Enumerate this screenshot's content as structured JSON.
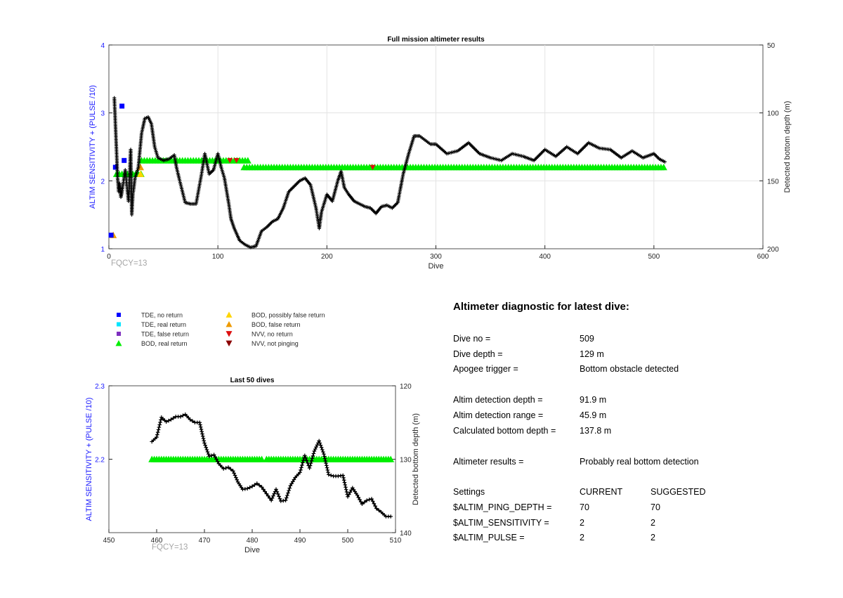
{
  "main_chart": {
    "title": "Full mission altimeter results",
    "xlabel": "Dive",
    "ylabel_left": "ALTIM SENSITIVITY + (PULSE /10)",
    "ylabel_right": "Detected bottom depth (m)",
    "annotation": "FQCY=13",
    "xticks": [
      "0",
      "100",
      "200",
      "300",
      "400",
      "500",
      "600"
    ],
    "yticks_left": [
      "1",
      "2",
      "3",
      "4"
    ],
    "yticks_right": [
      "50",
      "100",
      "150",
      "200"
    ]
  },
  "inset_chart": {
    "title": "Last 50 dives",
    "xlabel": "Dive",
    "ylabel_left": "ALTIM SENSITIVITY + (PULSE /10)",
    "ylabel_right": "Detected bottom depth (m)",
    "annotation": "FQCY=13",
    "xticks": [
      "450",
      "460",
      "470",
      "480",
      "490",
      "500",
      "510"
    ],
    "yticks_left": [
      "2.2",
      "2.3"
    ],
    "yticks_right": [
      "120",
      "130",
      "140"
    ]
  },
  "legend": {
    "items": [
      {
        "label": "TDE, no return",
        "color": "#0000ff",
        "shape": "square"
      },
      {
        "label": "TDE, real return",
        "color": "#00e5ff",
        "shape": "square"
      },
      {
        "label": "TDE, false return",
        "color": "#7e2fbf",
        "shape": "square"
      },
      {
        "label": "BOD, real return",
        "color": "#00ee00",
        "shape": "triangle-up"
      },
      {
        "label": "BOD, possibly false return",
        "color": "#ffd500",
        "shape": "triangle-up"
      },
      {
        "label": "BOD, false return",
        "color": "#ee9a00",
        "shape": "triangle-up"
      },
      {
        "label": "NVV, no return",
        "color": "#dd1010",
        "shape": "triangle-down"
      },
      {
        "label": "NVV, not pinging",
        "color": "#8b0000",
        "shape": "triangle-down"
      }
    ]
  },
  "diagnostic": {
    "title": "Altimeter diagnostic for latest dive:",
    "rows": [
      {
        "label": "Dive no =",
        "value": "509"
      },
      {
        "label": "Dive depth =",
        "value": "129 m"
      },
      {
        "label": "Apogee trigger =",
        "value": "Bottom obstacle detected"
      },
      {
        "label": "Altim detection depth =",
        "value": "91.9 m"
      },
      {
        "label": "Altim detection range =",
        "value": "45.9 m"
      },
      {
        "label": "Calculated bottom depth =",
        "value": "137.8 m"
      },
      {
        "label": "Altimeter results =",
        "value": "Probably real bottom detection"
      }
    ],
    "settings_header": {
      "name": "Settings",
      "current": "CURRENT",
      "suggested": "SUGGESTED"
    },
    "settings": [
      {
        "name": "$ALTIM_PING_DEPTH =",
        "current": "70",
        "suggested": "70"
      },
      {
        "name": "$ALTIM_SENSITIVITY =",
        "current": "2",
        "suggested": "2"
      },
      {
        "name": "$ALTIM_PULSE =",
        "current": "2",
        "suggested": "2"
      }
    ]
  },
  "chart_data": [
    {
      "type": "scatter",
      "title": "Full mission altimeter results",
      "xlabel": "Dive",
      "ylabel": "ALTIM SENSITIVITY + (PULSE /10)",
      "y2label": "Detected bottom depth (m)",
      "xlim": [
        0,
        600
      ],
      "ylim": [
        1,
        4
      ],
      "y2lim": [
        200,
        50
      ],
      "y2_reversed": true,
      "grid": true,
      "series": [
        {
          "name": "BOD, real return",
          "marker": "triangle-up",
          "color": "#00ee00",
          "segments": [
            {
              "x0": 7,
              "x1": 30,
              "y": 2.1
            },
            {
              "x0": 30,
              "x1": 128,
              "y": 2.3
            },
            {
              "x0": 124,
              "x1": 510,
              "y": 2.2
            }
          ]
        },
        {
          "name": "BOD, possibly false return",
          "marker": "triangle-up",
          "color": "#ffd500",
          "points": [
            [
              29,
              2.1
            ]
          ]
        },
        {
          "name": "BOD, false return",
          "marker": "triangle-up",
          "color": "#ee9a00",
          "points": [
            [
              4,
              1.2
            ],
            [
              29,
              2.2
            ]
          ]
        },
        {
          "name": "TDE, no return",
          "marker": "square",
          "color": "#0000ff",
          "points": [
            [
              2,
              1.2
            ],
            [
              6,
              2.2
            ],
            [
              12,
              3.1
            ],
            [
              14,
              2.3
            ]
          ]
        },
        {
          "name": "NVV, no return",
          "marker": "triangle-down",
          "color": "#dd1010",
          "points": [
            [
              111,
              2.3
            ],
            [
              117,
              2.3
            ],
            [
              242,
              2.2
            ]
          ]
        },
        {
          "name": "Detected bottom depth",
          "type": "line",
          "axis": "y2",
          "color": "#000000",
          "x": [
            5,
            8,
            9,
            10,
            11,
            12,
            15,
            18,
            20,
            21,
            22,
            24,
            27,
            30,
            33,
            36,
            39,
            42,
            45,
            50,
            55,
            60,
            62,
            65,
            70,
            75,
            80,
            85,
            88,
            92,
            96,
            100,
            103,
            106,
            110,
            112,
            115,
            120,
            125,
            130,
            135,
            140,
            145,
            150,
            155,
            160,
            165,
            170,
            175,
            180,
            185,
            190,
            193,
            195,
            200,
            205,
            210,
            213,
            216,
            220,
            225,
            230,
            235,
            240,
            245,
            250,
            255,
            260,
            265,
            270,
            275,
            280,
            285,
            290,
            295,
            300,
            310,
            320,
            330,
            340,
            350,
            360,
            370,
            380,
            390,
            400,
            410,
            420,
            430,
            440,
            450,
            460,
            470,
            480,
            490,
            500,
            505,
            510
          ],
          "y": [
            89,
            148,
            158,
            152,
            162,
            158,
            142,
            165,
            127,
            175,
            160,
            148,
            140,
            115,
            104,
            103,
            108,
            125,
            133,
            135,
            134,
            131,
            140,
            150,
            166,
            167,
            167,
            145,
            130,
            145,
            142,
            130,
            140,
            148,
            167,
            178,
            185,
            194,
            197,
            199,
            198,
            187,
            184,
            180,
            178,
            170,
            158,
            154,
            150,
            148,
            153,
            170,
            185,
            173,
            160,
            165,
            150,
            143,
            155,
            160,
            165,
            167,
            169,
            170,
            174,
            169,
            168,
            170,
            166,
            145,
            130,
            117,
            117,
            120,
            123,
            123,
            130,
            128,
            122,
            130,
            133,
            135,
            130,
            132,
            135,
            127,
            132,
            125,
            130,
            122,
            126,
            127,
            133,
            128,
            133,
            130,
            134,
            136
          ]
        }
      ]
    },
    {
      "type": "scatter",
      "title": "Last 50 dives",
      "xlabel": "Dive",
      "ylabel": "ALTIM SENSITIVITY + (PULSE /10)",
      "y2label": "Detected bottom depth (m)",
      "xlim": [
        450,
        510
      ],
      "ylim": [
        2.1,
        2.3
      ],
      "y2lim": [
        140,
        120
      ],
      "y2_reversed": true,
      "grid": false,
      "series": [
        {
          "name": "BOD, real return",
          "marker": "triangle-up",
          "color": "#00ee00",
          "segments": [
            {
              "x0": 459,
              "x1": 482,
              "y": 2.2
            },
            {
              "x0": 483,
              "x1": 509,
              "y": 2.2
            }
          ]
        },
        {
          "name": "Detected bottom depth",
          "type": "line",
          "axis": "y2",
          "color": "#000000",
          "x": [
            459,
            460,
            461,
            462,
            463,
            464,
            465,
            466,
            467,
            468,
            469,
            470,
            471,
            472,
            473,
            474,
            475,
            476,
            477,
            478,
            479,
            480,
            481,
            482,
            483,
            484,
            485,
            486,
            487,
            488,
            489,
            490,
            491,
            492,
            493,
            494,
            495,
            496,
            497,
            498,
            499,
            500,
            501,
            502,
            503,
            504,
            505,
            506,
            507,
            508,
            509
          ],
          "y": [
            127.6,
            127.0,
            124.3,
            124.9,
            124.6,
            124.2,
            124.2,
            123.9,
            124.6,
            125.0,
            125.0,
            127.8,
            129.6,
            129.4,
            130.6,
            131.3,
            131.1,
            131.6,
            133.1,
            134.1,
            134.0,
            133.7,
            133.3,
            133.8,
            134.7,
            135.6,
            134.1,
            135.7,
            135.6,
            133.6,
            132.5,
            131.8,
            129.5,
            131.2,
            128.9,
            127.5,
            129.3,
            132.1,
            132.3,
            132.3,
            132.2,
            135.1,
            133.9,
            134.9,
            136.1,
            135.6,
            135.4,
            136.7,
            137.2,
            137.8,
            137.8
          ]
        }
      ]
    }
  ]
}
